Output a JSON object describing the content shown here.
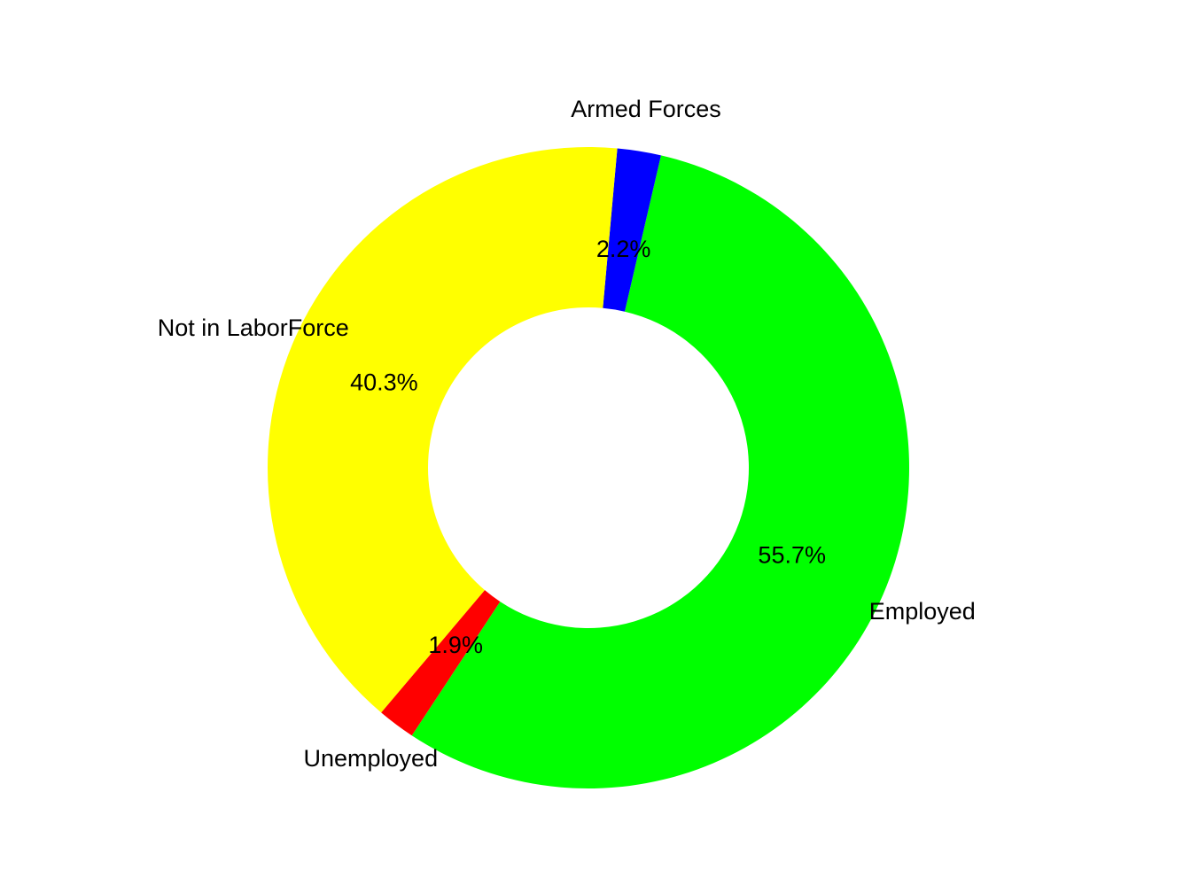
{
  "chart_data": {
    "type": "pie",
    "donut": true,
    "title": "",
    "slices": [
      {
        "label": "Employed",
        "value": 55.7,
        "display": "55.7%",
        "color": "#00FF00"
      },
      {
        "label": "Armed Forces",
        "value": 2.2,
        "display": "2.2%",
        "color": "#0000FF"
      },
      {
        "label": "Not in LaborForce",
        "value": 40.3,
        "display": "40.3%",
        "color": "#FFFF00"
      },
      {
        "label": "Unemployed",
        "value": 1.9,
        "display": "1.9%",
        "color": "#FF0000"
      }
    ],
    "legend": "none",
    "direction": "counterclockwise"
  }
}
